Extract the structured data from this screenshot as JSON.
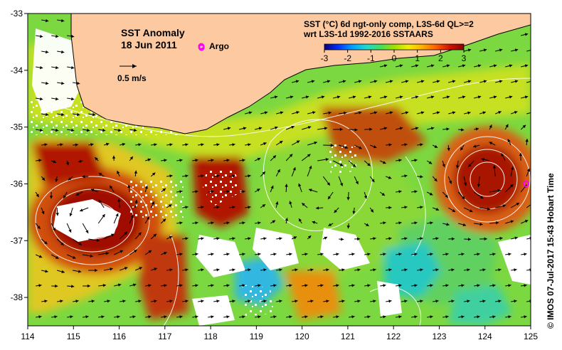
{
  "title": {
    "line1": "SST Anomaly",
    "line2": "18 Jun 2011"
  },
  "legend": {
    "argo_label": "Argo",
    "argo_color": "#ff00ff",
    "vector_scale_label": "0.5 m/s"
  },
  "product": {
    "line1": "SST (°C) 6d ngt-only comp, L3S-6d QL>=2",
    "line2": "wrt L3S-1d 1992-2016 SSTAARS"
  },
  "colorbar": {
    "ticks": [
      "-3",
      "-2",
      "-1",
      "0",
      "1",
      "2",
      "3"
    ],
    "range": [
      -3,
      3
    ],
    "colors": [
      "#0a0078",
      "#0030ff",
      "#00a0ff",
      "#20d8d0",
      "#40e060",
      "#a0e000",
      "#f0f000",
      "#ffb000",
      "#ff6000",
      "#d01000",
      "#8b0000"
    ]
  },
  "credit": "© IMOS 07-Jul-2017 15:43 Hobart Time",
  "axes": {
    "x_ticks": [
      "114",
      "115",
      "116",
      "117",
      "118",
      "119",
      "120",
      "121",
      "122",
      "123",
      "124",
      "125"
    ],
    "y_ticks": [
      "-33",
      "-34",
      "-35",
      "-36",
      "-37",
      "-38"
    ],
    "lon_range": [
      114,
      125
    ],
    "lat_range": [
      -33,
      -38.5
    ]
  },
  "map": {
    "land_color": "#fcc9a0",
    "coast_color": "#000000",
    "contour_color": "#ffffff",
    "argo_floats": [
      {
        "lon": 117.8,
        "lat": -33.6
      },
      {
        "lon": 124.9,
        "lat": -36.0
      }
    ]
  }
}
